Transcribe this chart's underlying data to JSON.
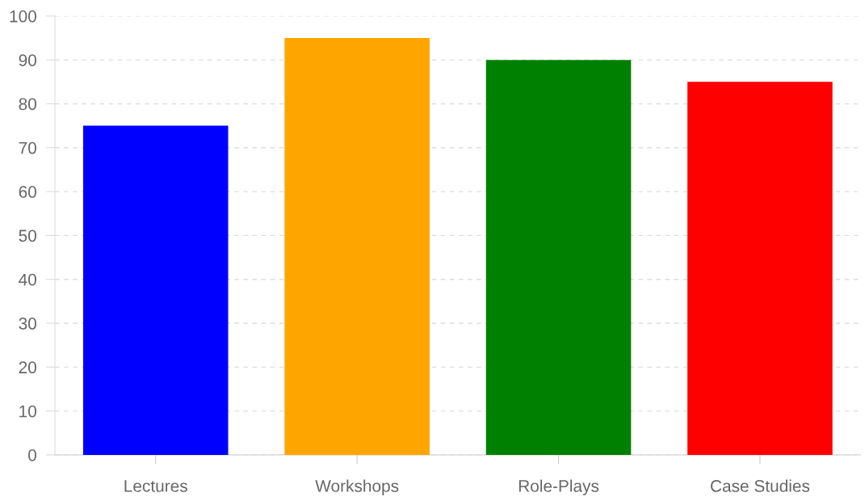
{
  "chart_data": {
    "type": "bar",
    "categories": [
      "Lectures",
      "Workshops",
      "Role-Plays",
      "Case Studies"
    ],
    "values": [
      75,
      95,
      90,
      85
    ],
    "colors": [
      "#0000ff",
      "#ffa500",
      "#008000",
      "#ff0000"
    ],
    "ylim": [
      0,
      100
    ],
    "yticks": [
      0,
      10,
      20,
      30,
      40,
      50,
      60,
      70,
      80,
      90,
      100
    ],
    "grid": "y"
  }
}
